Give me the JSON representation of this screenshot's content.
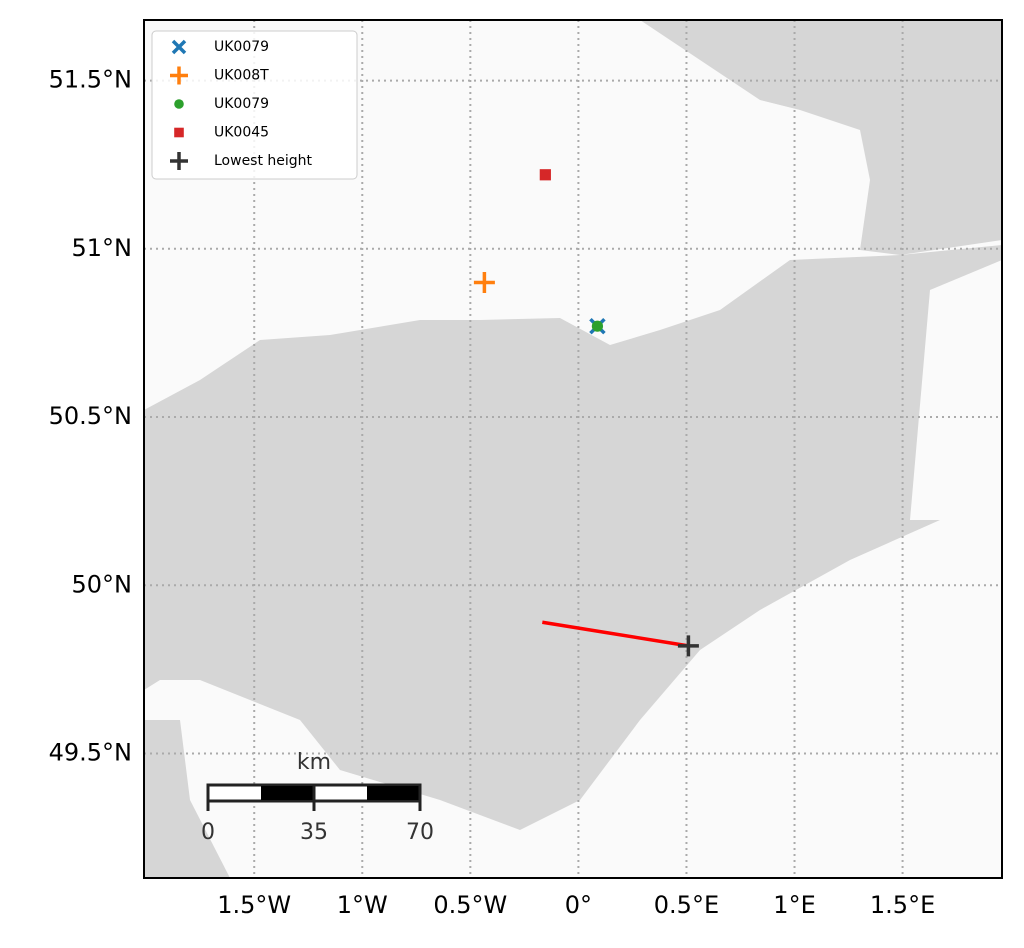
{
  "chart_data": {
    "type": "map",
    "xlim": [
      -2.01,
      1.96
    ],
    "ylim": [
      49.13,
      51.68
    ],
    "xticks": [
      {
        "value": -1.5,
        "label": "1.5°W"
      },
      {
        "value": -1,
        "label": "1°W"
      },
      {
        "value": -0.5,
        "label": "0.5°W"
      },
      {
        "value": 0,
        "label": "0°"
      },
      {
        "value": 0.5,
        "label": "0.5°E"
      },
      {
        "value": 1,
        "label": "1°E"
      },
      {
        "value": 1.5,
        "label": "1.5°E"
      }
    ],
    "yticks": [
      {
        "value": 51.5,
        "label": "51.5°N"
      },
      {
        "value": 51,
        "label": "51°N"
      },
      {
        "value": 50.5,
        "label": "50.5°N"
      },
      {
        "value": 50,
        "label": "50°N"
      },
      {
        "value": 49.5,
        "label": "49.5°N"
      }
    ],
    "grid": true,
    "legend": "upper left",
    "series": [
      {
        "name": "UK0079",
        "color": "#1f77b4",
        "marker": "x",
        "x": [
          0.088
        ],
        "values": [
          50.77
        ]
      },
      {
        "name": "UK008T",
        "color": "#ff7f0e",
        "marker": "plus",
        "x": [
          -0.435
        ],
        "values": [
          50.9
        ]
      },
      {
        "name": "UK0079",
        "color": "#2ca02c",
        "marker": "circle",
        "x": [
          0.088
        ],
        "values": [
          50.77
        ]
      },
      {
        "name": "UK0045",
        "color": "#d62728",
        "marker": "square",
        "x": [
          -0.153
        ],
        "values": [
          51.22
        ]
      },
      {
        "name": "Lowest height",
        "color": "#333333",
        "marker": "plus",
        "x": [
          0.509
        ],
        "values": [
          49.82
        ]
      }
    ],
    "track": {
      "color": "#ff0000",
      "x": [
        -0.167,
        0.509
      ],
      "values": [
        49.89,
        49.82
      ]
    },
    "scale_bar": {
      "unit": "km",
      "ticks": [
        0,
        35,
        70
      ]
    }
  }
}
